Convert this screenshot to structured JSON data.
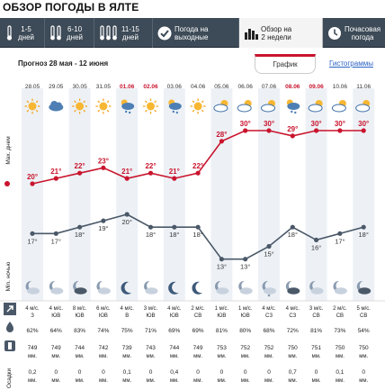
{
  "page_title": "ОБЗОР ПОГОДЫ В ЯЛТЕ",
  "tabs": [
    {
      "label": "1-5\nдней",
      "icon": "thermometer-icon",
      "active": false
    },
    {
      "label": "6-10\nдней",
      "icon": "thermometer-pair-icon",
      "active": false
    },
    {
      "label": "11-15\nдней",
      "icon": "thermometer-triple-icon",
      "active": false
    },
    {
      "label": "Погода на\nвыходные",
      "icon": "checkmark-icon",
      "active": false
    },
    {
      "label": "Обзор на\n2 недели",
      "icon": "bar-chart-icon",
      "active": true
    },
    {
      "label": "Почасовая\nпогода",
      "icon": "clock-icon",
      "active": false
    }
  ],
  "period": "Прогноз 28 мая - 12 июня",
  "view_tabs": {
    "graph": "График",
    "histograms": "Гистограммы"
  },
  "labels": {
    "max_day": "Max. днем",
    "min_night": "Min. ночью",
    "precip": "Осадки"
  },
  "colors": {
    "max_line": "#c9142d",
    "min_line": "#4a5868",
    "weekend_date": "#c9142d",
    "column_shade": "#edf1f6"
  },
  "chart_data": {
    "type": "line",
    "x": [
      "28.05",
      "29.05",
      "30.05",
      "31.05",
      "01.06",
      "02.06",
      "03.06",
      "04.06",
      "05.06",
      "06.06",
      "07.06",
      "08.06",
      "09.06",
      "10.06",
      "11.06"
    ],
    "weekend": [
      false,
      false,
      false,
      false,
      true,
      true,
      false,
      false,
      false,
      false,
      false,
      true,
      true,
      false,
      false
    ],
    "series": [
      {
        "name": "Max. днем",
        "values": [
          20,
          21,
          22,
          23,
          21,
          22,
          21,
          22,
          28,
          30,
          30,
          29,
          30,
          30,
          30
        ]
      },
      {
        "name": "Min. ночью",
        "values": [
          17,
          17,
          18,
          19,
          20,
          18,
          18,
          18,
          13,
          13,
          15,
          18,
          16,
          17,
          18
        ]
      }
    ],
    "day_icons": [
      "sun",
      "cloud",
      "sun",
      "sun",
      "rain-drop",
      "sun",
      "rain-drop",
      "sun",
      "cloud-sun",
      "cloud-sun",
      "cloud-sun",
      "rain-drop",
      "cloud-sun",
      "cloud-sun",
      "cloud-sun"
    ],
    "night_icons": [
      "moon-cloud",
      "moon-cloud",
      "moon-cloud-dark",
      "moon-cloud",
      "moon",
      "moon-cloud",
      "moon",
      "moon",
      "moon-cloud",
      "moon-cloud",
      "moon-drop",
      "moon-cloud-dark",
      "moon-cloud",
      "moon-cloud",
      "moon-cloud-dark"
    ],
    "wind_speed": [
      "4 м/с.",
      "4 м/с.",
      "8 м/с.",
      "6 м/с.",
      "4 м/с.",
      "3 м/с.",
      "4 м/с.",
      "2 м/с.",
      "1 м/с.",
      "1 м/с.",
      "4 м/с.",
      "4 м/с.",
      "3 м/с.",
      "2 м/с.",
      "5 м/с."
    ],
    "wind_dir": [
      "З",
      "ЮВ",
      "ЮВ",
      "ЮВ",
      "В",
      "ЮВ",
      "ЮВ",
      "СВ",
      "ЮВ",
      "ЮВ",
      "СЗ",
      "СЗ",
      "СВ",
      "СВ",
      "СВ"
    ],
    "humidity": [
      "62%",
      "64%",
      "83%",
      "74%",
      "75%",
      "71%",
      "69%",
      "69%",
      "81%",
      "80%",
      "68%",
      "72%",
      "81%",
      "73%",
      "54%"
    ],
    "pressure": [
      "749",
      "749",
      "744",
      "742",
      "739",
      "743",
      "744",
      "749",
      "753",
      "752",
      "752",
      "750",
      "751",
      "750",
      "750"
    ],
    "pressure_unit": "мм.",
    "precip": [
      "0,2",
      "0",
      "0",
      "0",
      "0,1",
      "0",
      "0,4",
      "0",
      "0",
      "0",
      "0",
      "0,7",
      "0",
      "0,1",
      "0"
    ],
    "precip_unit": "мм.",
    "ylim": [
      10,
      32
    ]
  }
}
